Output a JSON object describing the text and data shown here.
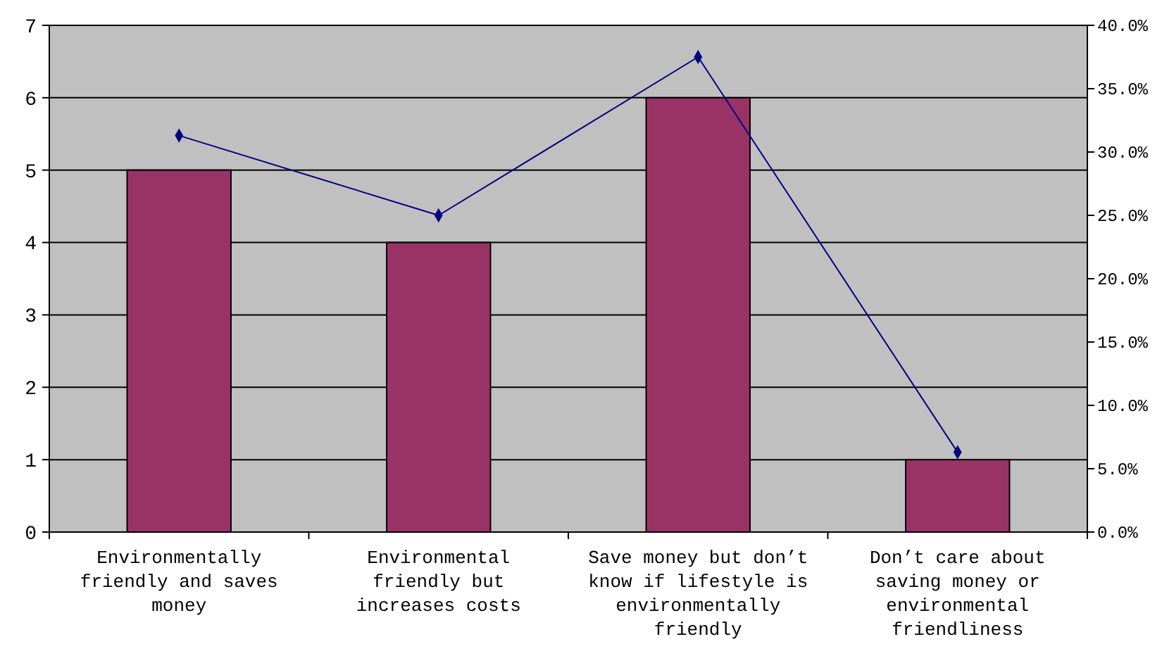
{
  "chart_data": {
    "type": "bar",
    "categories": [
      "Environmentally friendly and saves money",
      "Environmental friendly but increases costs",
      "Save money but don’t know if lifestyle is environmentally friendly",
      "Don’t care about saving money or environmental friendliness"
    ],
    "series": [
      {
        "color": "#993366",
        "values": [
          5,
          4,
          6,
          1
        ]
      },
      {
        "type": "line",
        "axis": "y2",
        "color": "#000080",
        "marker": "diamond",
        "values": [
          31.3,
          25,
          37.5,
          6.3
        ]
      }
    ],
    "ylim": [
      0,
      7
    ],
    "yticks": [
      0,
      1,
      2,
      3,
      4,
      5,
      6,
      7
    ],
    "y2lim": [
      0,
      40
    ],
    "y2ticks": [
      {
        "value": 0,
        "label": "0.0%"
      },
      {
        "value": 5,
        "label": "5.0%"
      },
      {
        "value": 10,
        "label": "10.0%"
      },
      {
        "value": 15,
        "label": "15.0%"
      },
      {
        "value": 20,
        "label": "20.0%"
      },
      {
        "value": 25,
        "label": "25.0%"
      },
      {
        "value": 30,
        "label": "30.0%"
      },
      {
        "value": 35,
        "label": "35.0%"
      },
      {
        "value": 40,
        "label": "40.0%"
      }
    ],
    "grid": "y"
  }
}
